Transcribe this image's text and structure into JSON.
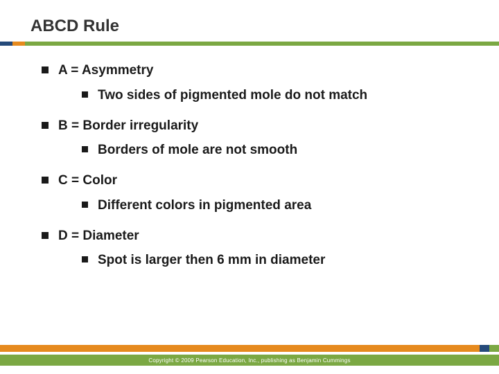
{
  "title": "ABCD Rule",
  "colors": {
    "underline_seg1": "#254a7a",
    "underline_seg2": "#e68a1e",
    "underline_seg3": "#7ba843",
    "footer_main": "#e68a1e",
    "footer_accent1": "#254a7a",
    "footer_accent2": "#7ba843",
    "footer_bg": "#7ba843",
    "text": "#1a1a1a",
    "title_text": "#333333",
    "footer_text": "#ffffff"
  },
  "items": {
    "a": {
      "label": "A = Asymmetry",
      "sub": "Two sides of pigmented mole do not match"
    },
    "b": {
      "label": "B = Border irregularity",
      "sub": "Borders of mole are not smooth"
    },
    "c": {
      "label": "C = Color",
      "sub": "Different colors in pigmented area"
    },
    "d": {
      "label": "D = Diameter",
      "sub": "Spot is larger then 6 mm in diameter"
    }
  },
  "footer": "Copyright © 2009 Pearson Education, Inc., publishing as Benjamin Cummings"
}
